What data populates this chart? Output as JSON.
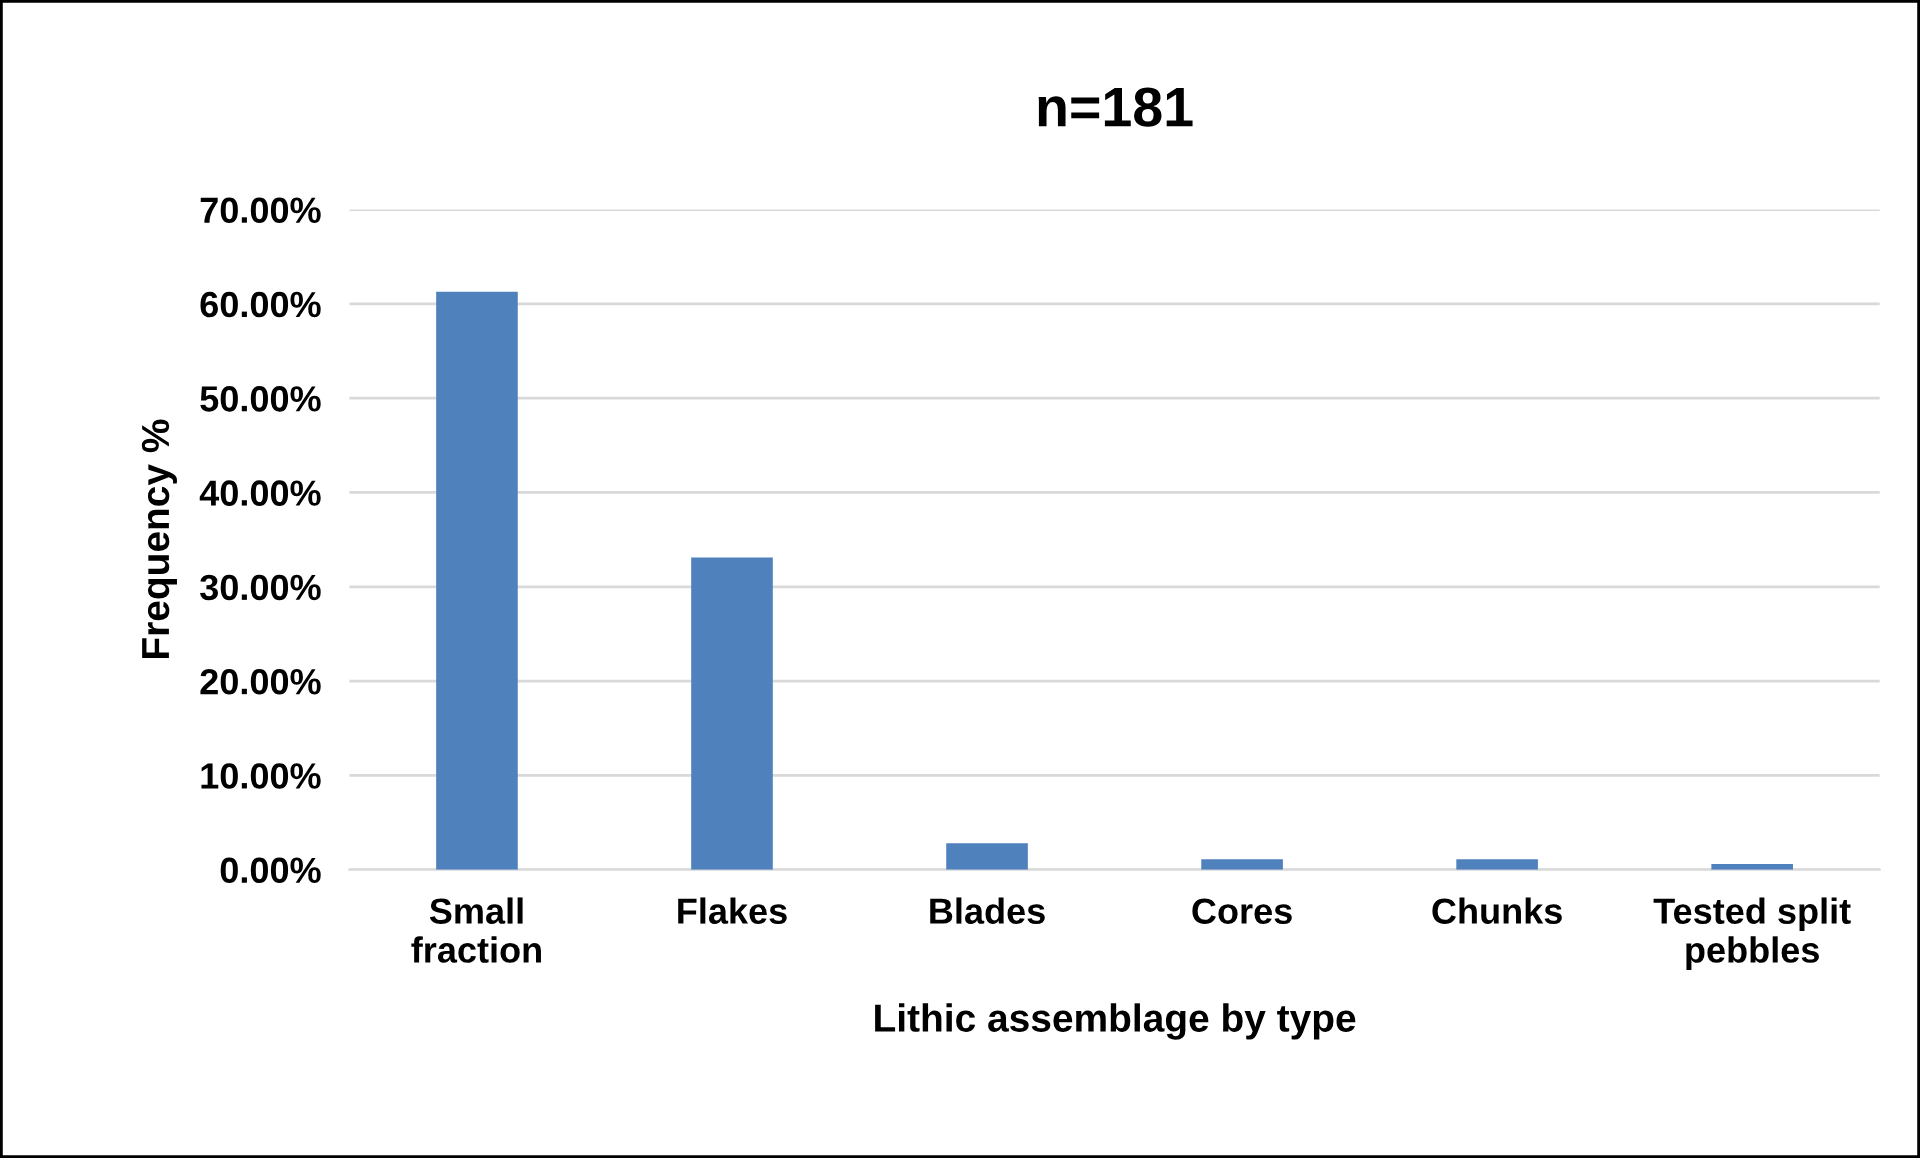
{
  "chart_data": {
    "type": "bar",
    "title": "n=181",
    "xlabel": "Lithic assemblage by type",
    "ylabel": "Frequency %",
    "categories": [
      "Small\nfraction",
      "Flakes",
      "Blades",
      "Cores",
      "Chunks",
      "Tested split\npebbles"
    ],
    "values": [
      61.3,
      33.1,
      2.8,
      1.1,
      1.1,
      0.6
    ],
    "color": "#4f81bd",
    "ylim": [
      0,
      70
    ],
    "yticks": [
      {
        "value": 0,
        "label": "0.00%"
      },
      {
        "value": 10,
        "label": "10.00%"
      },
      {
        "value": 20,
        "label": "20.00%"
      },
      {
        "value": 30,
        "label": "30.00%"
      },
      {
        "value": 40,
        "label": "40.00%"
      },
      {
        "value": 50,
        "label": "50.00%"
      },
      {
        "value": 60,
        "label": "60.00%"
      },
      {
        "value": 70,
        "label": "70.00%"
      }
    ],
    "grid": "y",
    "legend": false
  }
}
